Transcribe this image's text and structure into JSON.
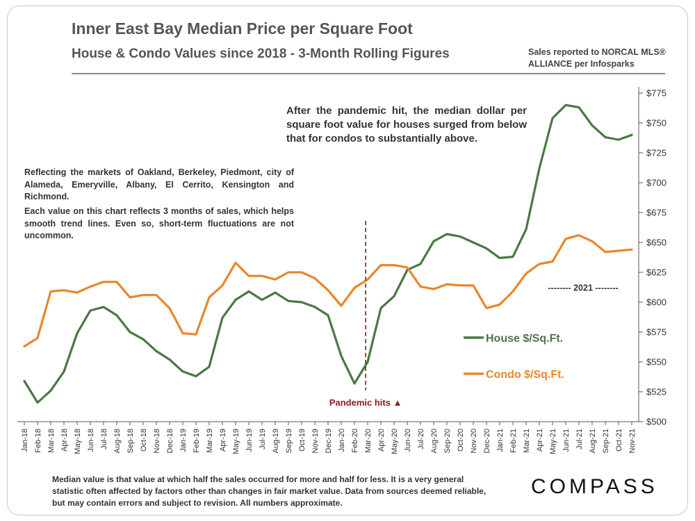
{
  "title": "Inner East Bay Median Price per Square Foot",
  "subtitle": "House & Condo Values since 2018 - 3-Month Rolling Figures",
  "source": "Sales reported to NORCAL MLS® ALLIANCE per Infosparks",
  "notes": {
    "markets": "Reflecting the markets of Oakland, Berkeley, Piedmont, city of Alameda, Emeryville, Albany, El Cerrito, Kensington and Richmond.",
    "sales": "Each value on this chart reflects 3 months of sales, which helps smooth trend lines. Even so, short-term fluctuations are not uncommon."
  },
  "annotation": "After the pandemic hit, the median dollar per square foot value for houses surged from below that for condos to substantially above.",
  "footer_note": "Median value is that value at which half the sales occurred for more and half for less. It is a very general statistic often affected by factors other than changes in fair market value. Data from sources deemed reliable, but may contain errors and subject to revision. All numbers approximate.",
  "logo": "COMPASS",
  "colors": {
    "house": "#4a7843",
    "condo": "#e8862a",
    "pandemic": "#8b1a1a",
    "axis": "#555555"
  },
  "chart_data": {
    "type": "line",
    "categories": [
      "Jan-18",
      "Feb-18",
      "Mar-18",
      "Apr-18",
      "May-18",
      "Jun-18",
      "Jul-18",
      "Aug-18",
      "Sep-18",
      "Oct-18",
      "Nov-18",
      "Dec-18",
      "Jan-19",
      "Feb-19",
      "Mar-19",
      "Apr-19",
      "May-19",
      "Jun-19",
      "Jul-19",
      "Aug-19",
      "Sep-19",
      "Oct-19",
      "Nov-19",
      "Dec-19",
      "Jan-20",
      "Feb-20",
      "Mar-20",
      "Apr-20",
      "May-20",
      "Jun-20",
      "Jul-20",
      "Aug-20",
      "Sep-20",
      "Oct-20",
      "Nov-20",
      "Dec-20",
      "Jan-21",
      "Feb-21",
      "Mar-21",
      "Apr-21",
      "May-21",
      "Jun-21",
      "Jul-21",
      "Aug-21",
      "Sep-21",
      "Oct-21",
      "Nov-21"
    ],
    "series": [
      {
        "name": "House $/Sq.Ft.",
        "values": [
          534,
          516,
          526,
          542,
          574,
          593,
          596,
          589,
          575,
          569,
          559,
          552,
          542,
          538,
          546,
          587,
          602,
          609,
          602,
          608,
          601,
          600,
          596,
          589,
          555,
          532,
          550,
          595,
          605,
          627,
          632,
          651,
          657,
          655,
          650,
          645,
          637,
          638,
          661,
          712,
          754,
          765,
          763,
          748,
          738,
          736,
          740
        ]
      },
      {
        "name": "Condo $/Sq.Ft.",
        "values": [
          563,
          570,
          609,
          610,
          608,
          613,
          617,
          617,
          604,
          606,
          606,
          595,
          574,
          573,
          604,
          614,
          633,
          622,
          622,
          619,
          625,
          625,
          620,
          610,
          597,
          612,
          619,
          631,
          631,
          629,
          613,
          611,
          615,
          614,
          614,
          595,
          598,
          609,
          624,
          632,
          634,
          653,
          656,
          651,
          642,
          643,
          644
        ]
      }
    ],
    "ylim": [
      500,
      775
    ],
    "yticks": [
      500,
      525,
      550,
      575,
      600,
      625,
      650,
      675,
      700,
      725,
      750,
      775
    ],
    "ytick_labels": [
      "$500",
      "$525",
      "$550",
      "$575",
      "$600",
      "$625",
      "$650",
      "$675",
      "$700",
      "$725",
      "$750",
      "$775"
    ],
    "y_axis_position": "right",
    "grid": false,
    "legend_position": "lower-right",
    "pandemic_marker": {
      "category": "Mar-20",
      "label": "Pandemic hits ▲"
    },
    "period_label": {
      "text": "-------- 2021 --------",
      "start": "Jan-21",
      "end": "Nov-21",
      "y": 612
    }
  }
}
